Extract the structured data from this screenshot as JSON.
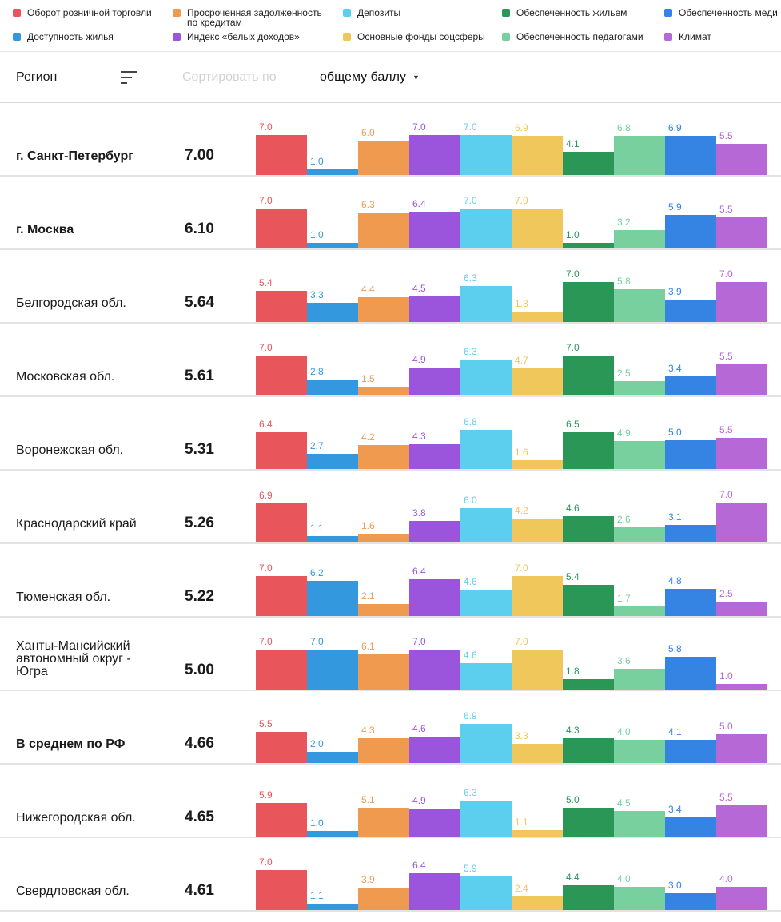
{
  "legend": {
    "items": [
      {
        "key": "retail",
        "label": "Оборот розничной торговли",
        "color": "#e8555a"
      },
      {
        "key": "overdue",
        "label": "Просроченная задолженность\nпо кредитам",
        "color": "#ef9a4e"
      },
      {
        "key": "deposits",
        "label": "Депозиты",
        "color": "#5ccfef"
      },
      {
        "key": "housing_supply",
        "label": "Обеспеченность жильем",
        "color": "#2a9757"
      },
      {
        "key": "medical",
        "label": "Обеспеченность меди",
        "color": "#3584e4"
      },
      {
        "key": "housing_afford",
        "label": "Доступность жилья",
        "color": "#3398dd"
      },
      {
        "key": "white_income",
        "label": "Индекс «белых доходов»",
        "color": "#9a55dc"
      },
      {
        "key": "social_assets",
        "label": "Основные фонды соцсферы",
        "color": "#f0c75a"
      },
      {
        "key": "teachers",
        "label": "Обеспеченность педагогами",
        "color": "#77d09d"
      },
      {
        "key": "climate",
        "label": "Климат",
        "color": "#b669d6"
      }
    ]
  },
  "header": {
    "region_label": "Регион",
    "sort_placeholder": "Сортировать по",
    "sort_value": "общему баллу"
  },
  "chart_data": {
    "type": "bar",
    "ylim": [
      0,
      7
    ],
    "series_order": [
      "retail",
      "housing_afford",
      "overdue",
      "white_income",
      "deposits",
      "social_assets",
      "housing_supply",
      "teachers",
      "medical",
      "climate"
    ],
    "series_colors": {
      "retail": "#e8555a",
      "housing_afford": "#3398dd",
      "overdue": "#ef9a4e",
      "white_income": "#9a55dc",
      "deposits": "#5ccfef",
      "social_assets": "#f0c75a",
      "housing_supply": "#2a9757",
      "teachers": "#77d09d",
      "medical": "#3584e4",
      "climate": "#b669d6"
    },
    "rows": [
      {
        "name": "г. Санкт-Петербург",
        "bold": true,
        "score": "7.00",
        "values": [
          7.0,
          1.0,
          6.0,
          7.0,
          7.0,
          6.9,
          4.1,
          6.8,
          6.9,
          5.5
        ]
      },
      {
        "name": "г. Москва",
        "bold": true,
        "score": "6.10",
        "values": [
          7.0,
          1.0,
          6.3,
          6.4,
          7.0,
          7.0,
          1.0,
          3.2,
          5.9,
          5.5
        ]
      },
      {
        "name": "Белгородская обл.",
        "bold": false,
        "score": "5.64",
        "values": [
          5.4,
          3.3,
          4.4,
          4.5,
          6.3,
          1.8,
          7.0,
          5.8,
          3.9,
          7.0
        ]
      },
      {
        "name": "Московская обл.",
        "bold": false,
        "score": "5.61",
        "values": [
          7.0,
          2.8,
          1.5,
          4.9,
          6.3,
          4.7,
          7.0,
          2.5,
          3.4,
          5.5
        ]
      },
      {
        "name": "Воронежская обл.",
        "bold": false,
        "score": "5.31",
        "values": [
          6.4,
          2.7,
          4.2,
          4.3,
          6.8,
          1.6,
          6.5,
          4.9,
          5.0,
          5.5
        ]
      },
      {
        "name": "Краснодарский край",
        "bold": false,
        "score": "5.26",
        "values": [
          6.9,
          1.1,
          1.6,
          3.8,
          6.0,
          4.2,
          4.6,
          2.6,
          3.1,
          7.0
        ]
      },
      {
        "name": "Тюменская обл.",
        "bold": false,
        "score": "5.22",
        "values": [
          7.0,
          6.2,
          2.1,
          6.4,
          4.6,
          7.0,
          5.4,
          1.7,
          4.8,
          2.5
        ]
      },
      {
        "name": "Ханты-Мансийский\nавтономный округ -\nЮгра",
        "bold": false,
        "score": "5.00",
        "values": [
          7.0,
          7.0,
          6.1,
          7.0,
          4.6,
          7.0,
          1.8,
          3.6,
          5.8,
          1.0
        ]
      },
      {
        "name": "В среднем по РФ",
        "bold": true,
        "score": "4.66",
        "values": [
          5.5,
          2.0,
          4.3,
          4.6,
          6.9,
          3.3,
          4.3,
          4.0,
          4.1,
          5.0
        ]
      },
      {
        "name": "Нижегородская обл.",
        "bold": false,
        "score": "4.65",
        "values": [
          5.9,
          1.0,
          5.1,
          4.9,
          6.3,
          1.1,
          5.0,
          4.5,
          3.4,
          5.5
        ]
      },
      {
        "name": "Свердловская обл.",
        "bold": false,
        "score": "4.61",
        "values": [
          7.0,
          1.1,
          3.9,
          6.4,
          5.9,
          2.4,
          4.4,
          4.0,
          3.0,
          4.0
        ]
      }
    ]
  }
}
